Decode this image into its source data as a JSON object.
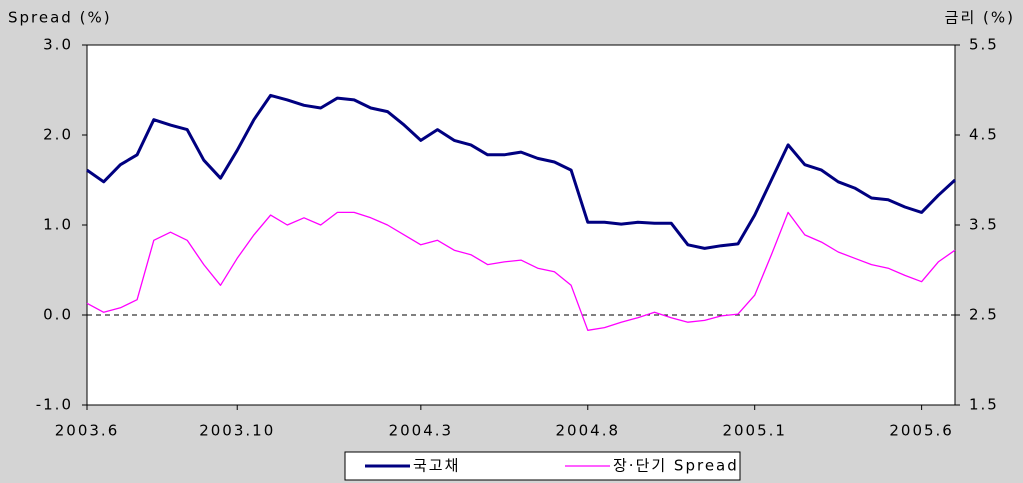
{
  "chart_data": {
    "type": "line",
    "ylabel": "Spread (%)",
    "y2label": "금리 (%)",
    "categories": [
      "2003.6",
      null,
      null,
      null,
      null,
      null,
      null,
      null,
      null,
      "2003.10",
      null,
      null,
      null,
      null,
      null,
      null,
      null,
      null,
      null,
      null,
      "2004.3",
      null,
      null,
      null,
      null,
      null,
      null,
      null,
      null,
      null,
      "2004.8",
      null,
      null,
      null,
      null,
      null,
      null,
      null,
      null,
      null,
      "2005.1",
      null,
      null,
      null,
      null,
      null,
      null,
      null,
      null,
      null,
      "2005.6",
      null,
      null
    ],
    "ylim": [
      -1,
      3
    ],
    "yticks": [
      {
        "value": -1,
        "label": "-1.0"
      },
      {
        "value": 0,
        "label": "0.0"
      },
      {
        "value": 1,
        "label": "1.0"
      },
      {
        "value": 2,
        "label": "2.0"
      },
      {
        "value": 3,
        "label": "3.0"
      }
    ],
    "y2lim": [
      1.5,
      5.5
    ],
    "y2ticks": [
      1.5,
      2.5,
      3.5,
      4.5,
      5.5
    ],
    "reference_line": 0,
    "legend": "bottom",
    "series": [
      {
        "name": "국고채",
        "color": "#000080",
        "axis": "y2",
        "values": [
          4.11,
          3.98,
          4.17,
          4.28,
          4.67,
          4.61,
          4.56,
          4.22,
          4.02,
          4.33,
          4.67,
          4.94,
          4.89,
          4.83,
          4.8,
          4.91,
          4.89,
          4.8,
          4.76,
          4.61,
          4.44,
          4.56,
          4.44,
          4.39,
          4.28,
          4.28,
          4.31,
          4.24,
          4.2,
          4.11,
          3.53,
          3.53,
          3.51,
          3.53,
          3.52,
          3.52,
          3.28,
          3.24,
          3.27,
          3.29,
          3.61,
          4.0,
          4.39,
          4.17,
          4.11,
          3.98,
          3.91,
          3.8,
          3.78,
          3.7,
          3.64,
          3.83,
          4.0
        ]
      },
      {
        "name": "장·단기 Spread",
        "color": "#ff00ff",
        "values": [
          0.13,
          0.03,
          0.08,
          0.17,
          0.83,
          0.92,
          0.83,
          0.56,
          0.33,
          0.63,
          0.89,
          1.11,
          1.0,
          1.08,
          1.0,
          1.14,
          1.14,
          1.08,
          1.0,
          0.89,
          0.78,
          0.83,
          0.72,
          0.67,
          0.56,
          0.59,
          0.61,
          0.52,
          0.48,
          0.33,
          -0.17,
          -0.14,
          -0.08,
          -0.03,
          0.03,
          -0.03,
          -0.08,
          -0.06,
          -0.01,
          0.01,
          0.22,
          0.67,
          1.14,
          0.89,
          0.81,
          0.7,
          0.63,
          0.56,
          0.52,
          0.44,
          0.37,
          0.59,
          0.72
        ]
      }
    ]
  }
}
